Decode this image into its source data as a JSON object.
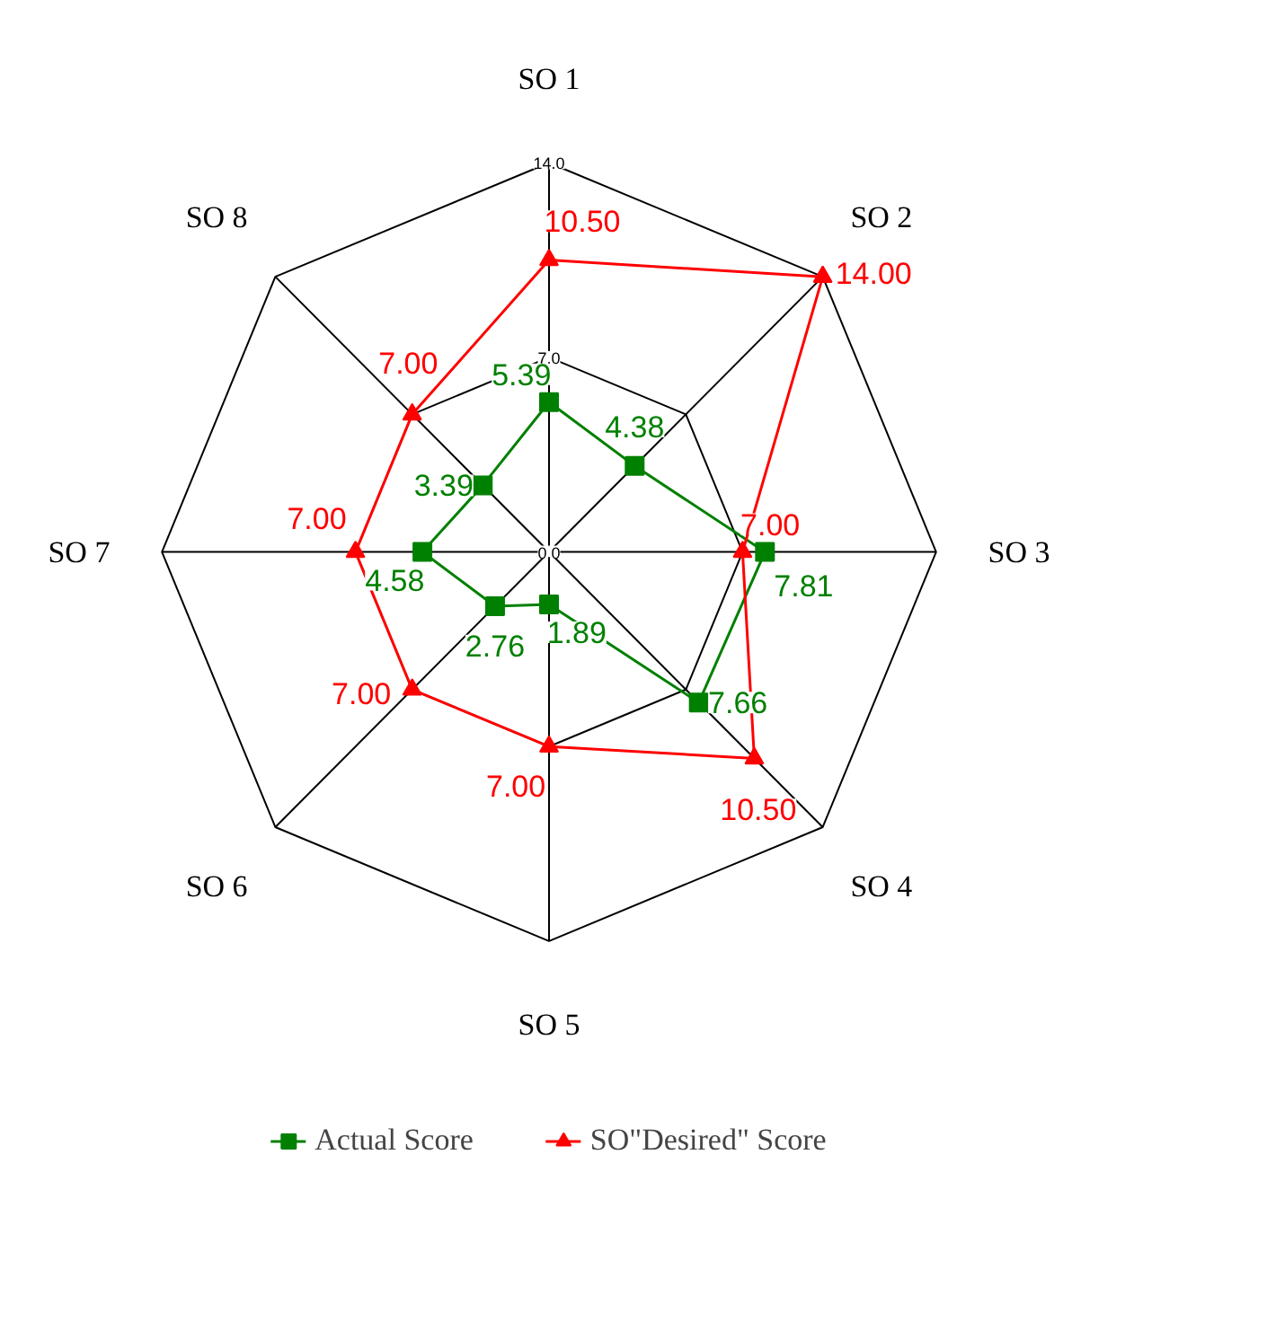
{
  "chart_data": {
    "type": "radar",
    "categories": [
      "SO 1",
      "SO 2",
      "SO 3",
      "SO 4",
      "SO 5",
      "SO 6",
      "SO 7",
      "SO 8"
    ],
    "ylim": [
      0,
      14
    ],
    "yticks": [
      {
        "value": 0,
        "label": "0.0"
      },
      {
        "value": 7,
        "label": "7.0"
      },
      {
        "value": 14,
        "label": "14.0"
      }
    ],
    "grid": true,
    "legend": "bottom",
    "line_style": "solid",
    "series": [
      {
        "name": "Actual Score",
        "color": "#008000",
        "marker": "square",
        "values": [
          5.39,
          4.38,
          7.81,
          7.66,
          1.89,
          2.76,
          4.58,
          3.39
        ],
        "value_labels": [
          "5.39",
          "4.38",
          "7.81",
          "7.66",
          "1.89",
          "2.76",
          "4.58",
          "3.39"
        ]
      },
      {
        "name": "SO\"Desired\" Score",
        "color": "#ff0000",
        "marker": "triangle",
        "values": [
          10.5,
          14,
          7,
          10.5,
          7,
          7,
          7,
          7
        ],
        "value_labels": [
          "10.50",
          "14.00",
          "7.00",
          "10.50",
          "7.00",
          "7.00",
          "7.00",
          "7.00"
        ]
      }
    ]
  }
}
